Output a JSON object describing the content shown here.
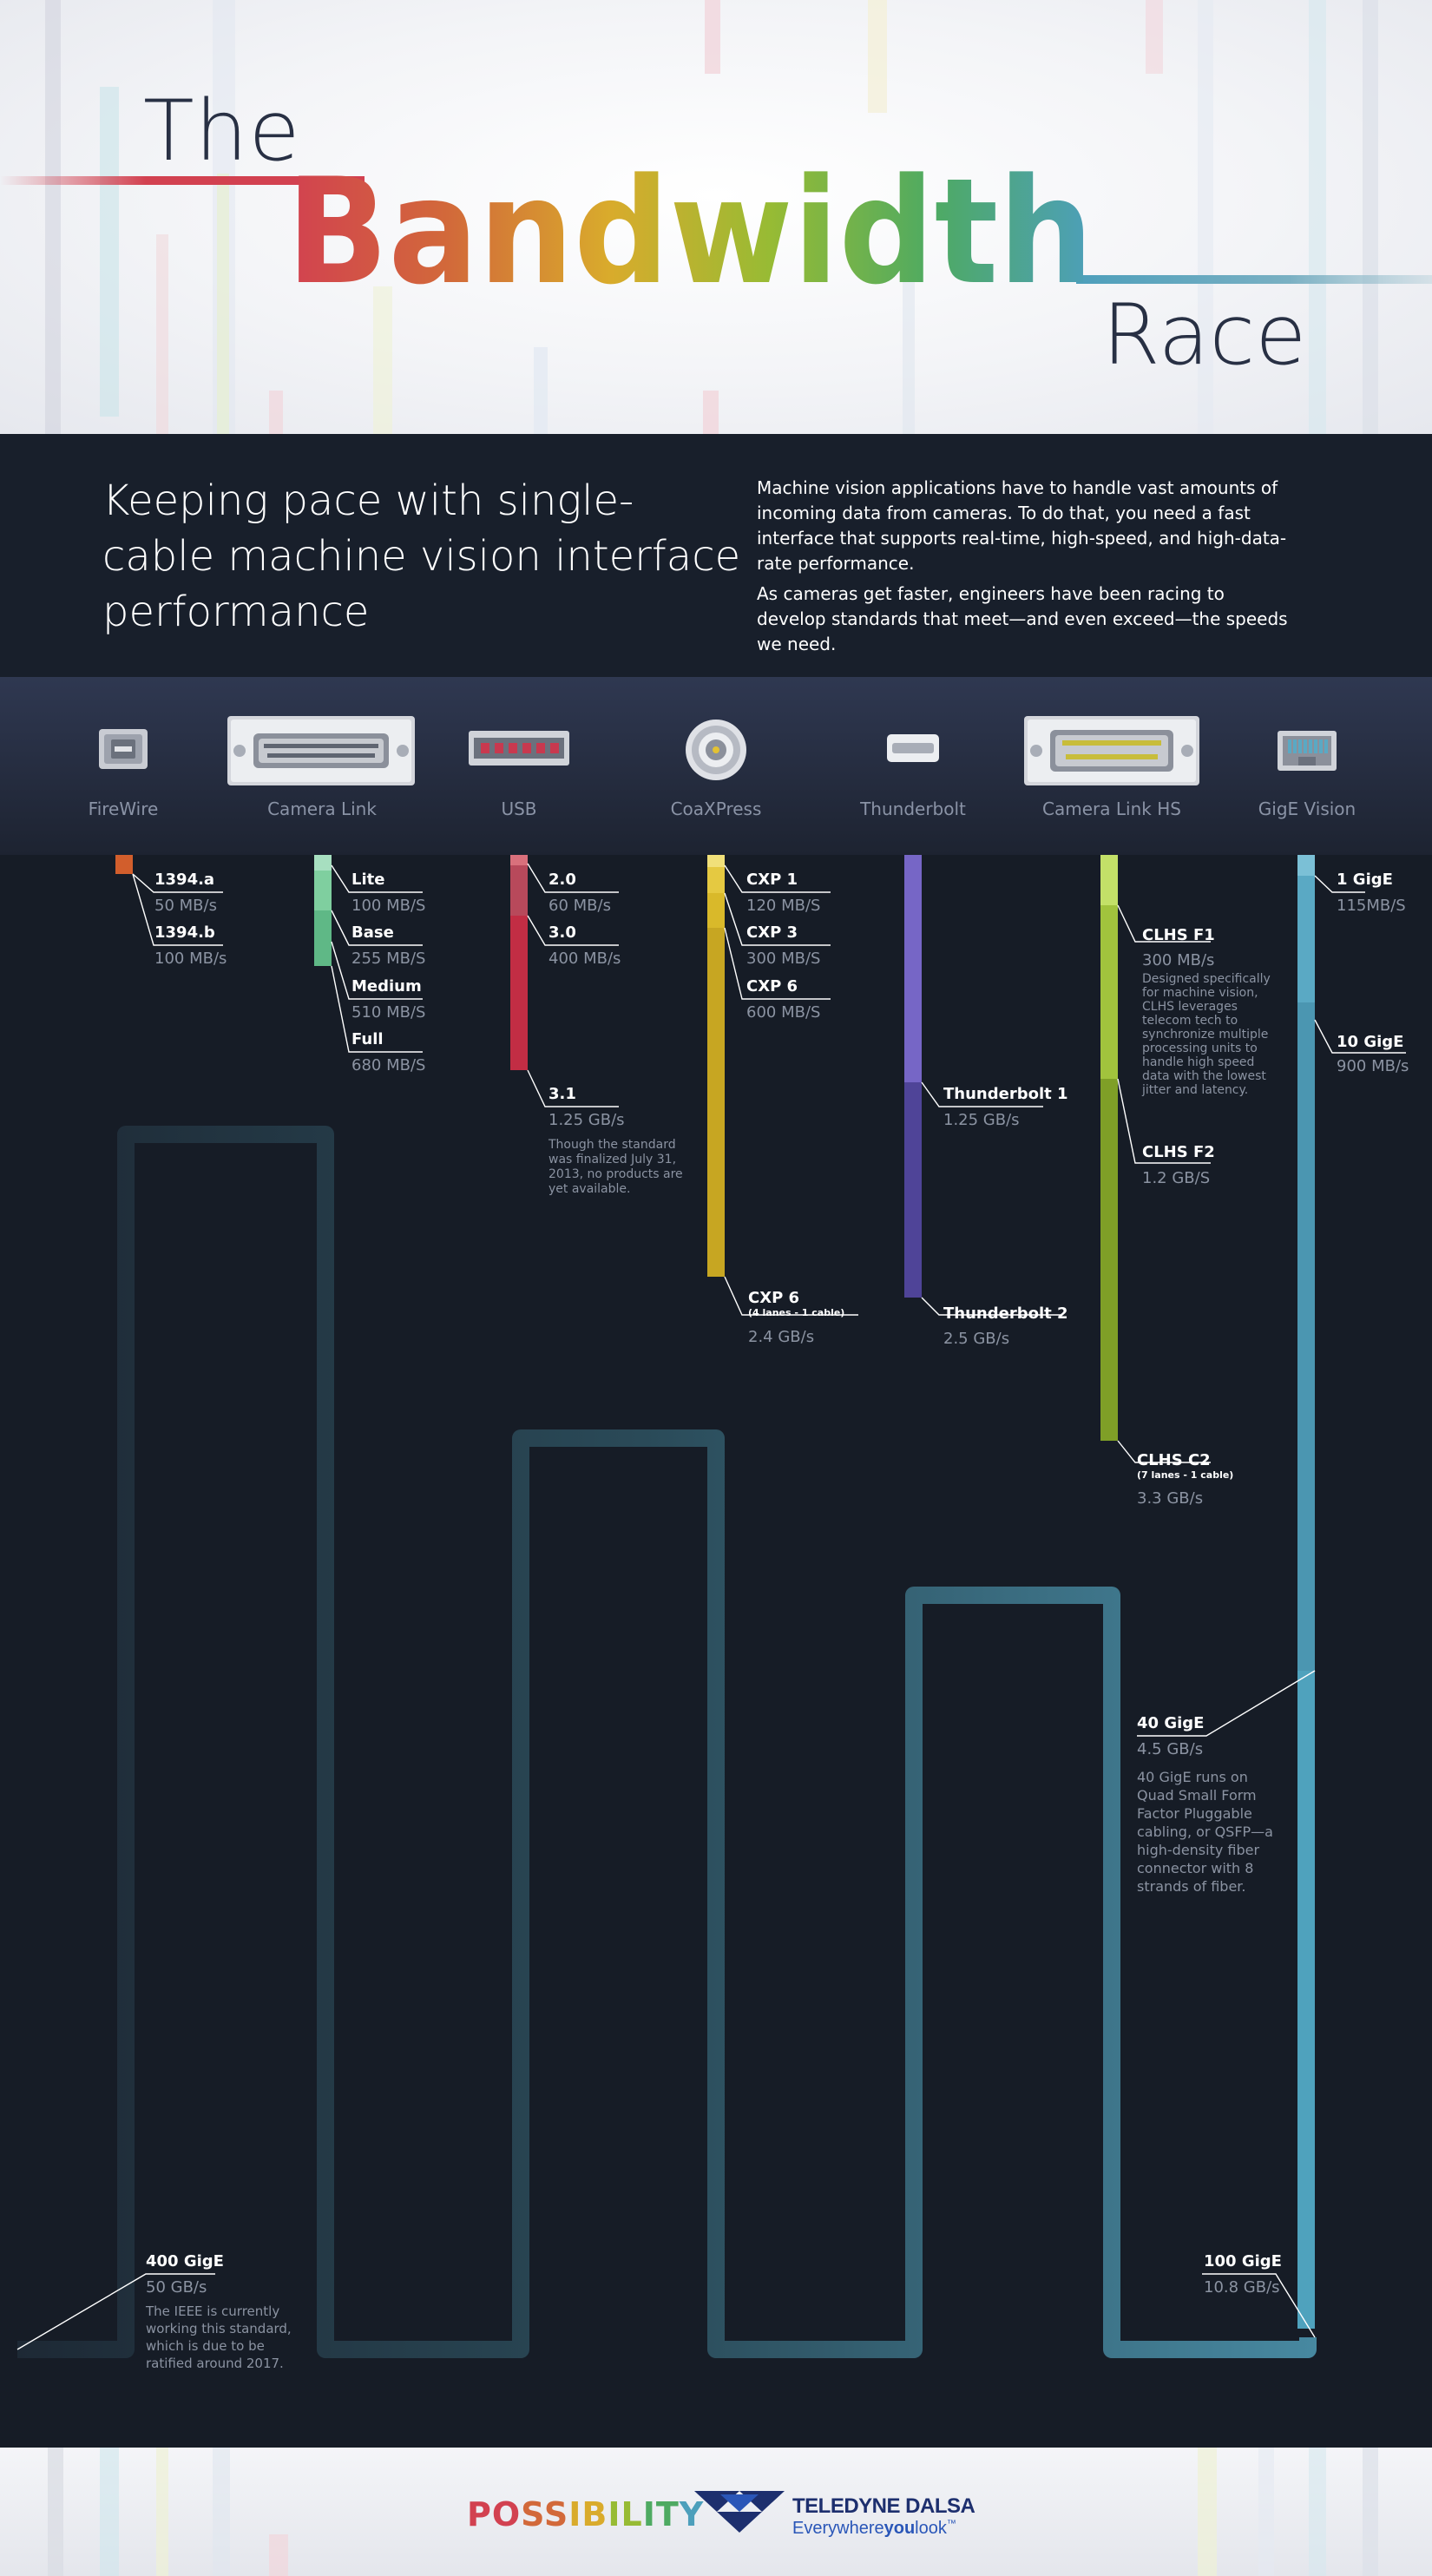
{
  "title": {
    "line1": "The",
    "line2": "Bandwidth",
    "line3": "Race",
    "gradient_colors": [
      "#d24150",
      "#d2693a",
      "#d9ab2c",
      "#97bb34",
      "#4eaa62",
      "#4d9fbb"
    ]
  },
  "intro": {
    "heading": "Keeping pace with single-cable machine vision interface performance",
    "paragraph1": "Machine vision applications have to handle vast amounts of incoming data from cameras. To do that, you need a fast interface that supports real-time, high-speed, and high-data-rate performance.",
    "paragraph2": "As cameras get faster, engineers have been racing to develop standards that meet—and even exceed—the speeds we need."
  },
  "interfaces": [
    {
      "label": "FireWire",
      "icon": "firewire-connector-icon",
      "color": "#d25e2c"
    },
    {
      "label": "Camera Link",
      "icon": "camera-link-connector-icon",
      "color": "#6ec696"
    },
    {
      "label": "USB",
      "icon": "usb-connector-icon",
      "color": "#c8394f"
    },
    {
      "label": "CoaXPress",
      "icon": "coaxpress-connector-icon",
      "color": "#e3c233"
    },
    {
      "label": "Thunderbolt",
      "icon": "thunderbolt-connector-icon",
      "color": "#6a5fbf"
    },
    {
      "label": "Camera Link HS",
      "icon": "camera-link-hs-connector-icon",
      "color": "#96bd3a"
    },
    {
      "label": "GigE Vision",
      "icon": "gige-vision-connector-icon",
      "color": "#5aa9c4"
    }
  ],
  "standards": {
    "firewire": [
      {
        "name": "1394.a",
        "speed": "50 MB/s"
      },
      {
        "name": "1394.b",
        "speed": "100 MB/s"
      }
    ],
    "cameralink": [
      {
        "name": "Lite",
        "speed": "100 MB/S"
      },
      {
        "name": "Base",
        "speed": "255 MB/S"
      },
      {
        "name": "Medium",
        "speed": "510 MB/S"
      },
      {
        "name": "Full",
        "speed": "680 MB/S"
      }
    ],
    "usb": [
      {
        "name": "2.0",
        "speed": "60 MB/s"
      },
      {
        "name": "3.0",
        "speed": "400 MB/s"
      },
      {
        "name": "3.1",
        "speed": "1.25 GB/s",
        "note": "Though the standard was finalized July 31, 2013, no products are yet available."
      }
    ],
    "coaxpress": [
      {
        "name": "CXP 1",
        "speed": "120 MB/S"
      },
      {
        "name": "CXP 3",
        "speed": "300 MB/S"
      },
      {
        "name": "CXP 6",
        "speed": "600 MB/S"
      },
      {
        "name": "CXP 6",
        "sub": "(4 lanes - 1 cable)",
        "speed": "2.4 GB/s"
      }
    ],
    "thunderbolt": [
      {
        "name": "Thunderbolt 1",
        "speed": "1.25 GB/s"
      },
      {
        "name": "Thunderbolt 2",
        "speed": "2.5 GB/s"
      }
    ],
    "clhs": [
      {
        "name": "CLHS F1",
        "speed": "300 MB/s",
        "note": "Designed specifically for machine vision, CLHS leverages telecom tech to synchronize multiple processing units to handle high speed data with the lowest jitter and latency."
      },
      {
        "name": "CLHS F2",
        "speed": "1.2 GB/S"
      },
      {
        "name": "CLHS C2",
        "sub": "(7 lanes - 1 cable)",
        "speed": "3.3 GB/s"
      }
    ],
    "gige": [
      {
        "name": "1 GigE",
        "speed": "115MB/S"
      },
      {
        "name": "10 GigE",
        "speed": "900 MB/s"
      },
      {
        "name": "40 GigE",
        "speed": "4.5 GB/s",
        "note": "40 GigE runs on Quad Small Form Factor Pluggable cabling, or QSFP—a high-density fiber connector with 8 strands of fiber."
      },
      {
        "name": "100 GigE",
        "speed": "10.8 GB/s"
      },
      {
        "name": "400 GigE",
        "speed": "50 GB/s",
        "note": "The IEEE is currently working this standard, which is due to be ratified around 2017."
      }
    ]
  },
  "footer": {
    "possibility": "POSSIBILITY",
    "possibility_colors": [
      "#d24150",
      "#d2693a",
      "#d9ab2c",
      "#97bb34",
      "#4eaa62",
      "#4d9fbb",
      "#6a5fbf"
    ],
    "brand": "TELEDYNE DALSA",
    "tagline_prefix": "Everywhere",
    "tagline_you": "you",
    "tagline_suffix": "look",
    "tagline_tm": "™"
  }
}
